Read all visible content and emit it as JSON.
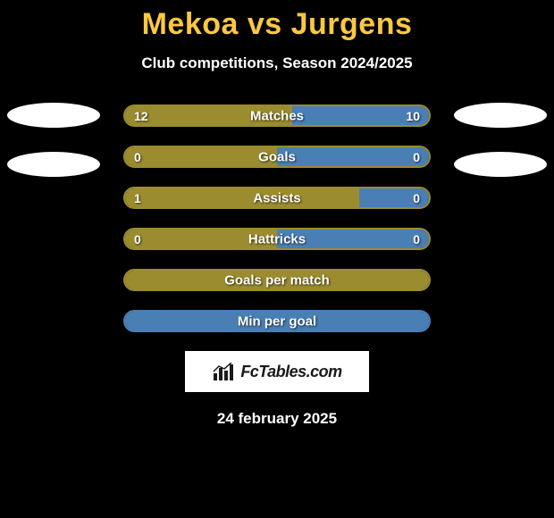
{
  "title": "Mekoa vs Jurgens",
  "title_color": "#fbc841",
  "subtitle": "Club competitions, Season 2024/2025",
  "background_color": "#000000",
  "ellipse": {
    "color": "#ffffff",
    "width": 104,
    "height": 28
  },
  "stats": [
    {
      "label": "Matches",
      "left_value": "12",
      "right_value": "10",
      "left_pct": 55,
      "right_pct": 45,
      "left_color": "#9a8c2f",
      "right_color": "#4a7fb5",
      "border_color": "#9a8c2f"
    },
    {
      "label": "Goals",
      "left_value": "0",
      "right_value": "0",
      "left_pct": 50,
      "right_pct": 50,
      "left_color": "#9a8c2f",
      "right_color": "#4a7fb5",
      "border_color": "#9a8c2f"
    },
    {
      "label": "Assists",
      "left_value": "1",
      "right_value": "0",
      "left_pct": 77,
      "right_pct": 23,
      "left_color": "#9a8c2f",
      "right_color": "#4a7fb5",
      "border_color": "#9a8c2f"
    },
    {
      "label": "Hattricks",
      "left_value": "0",
      "right_value": "0",
      "left_pct": 50,
      "right_pct": 50,
      "left_color": "#9a8c2f",
      "right_color": "#4a7fb5",
      "border_color": "#9a8c2f"
    },
    {
      "label": "Goals per match",
      "left_value": "",
      "right_value": "",
      "left_pct": 100,
      "right_pct": 0,
      "left_color": "#9a8c2f",
      "right_color": "#4a7fb5",
      "border_color": "#9a8c2f"
    },
    {
      "label": "Min per goal",
      "left_value": "",
      "right_value": "",
      "left_pct": 0,
      "right_pct": 100,
      "left_color": "#9a8c2f",
      "right_color": "#4a7fb5",
      "border_color": "#4a7fb5"
    }
  ],
  "logo_text": "FcTables.com",
  "date": "24 february 2025"
}
